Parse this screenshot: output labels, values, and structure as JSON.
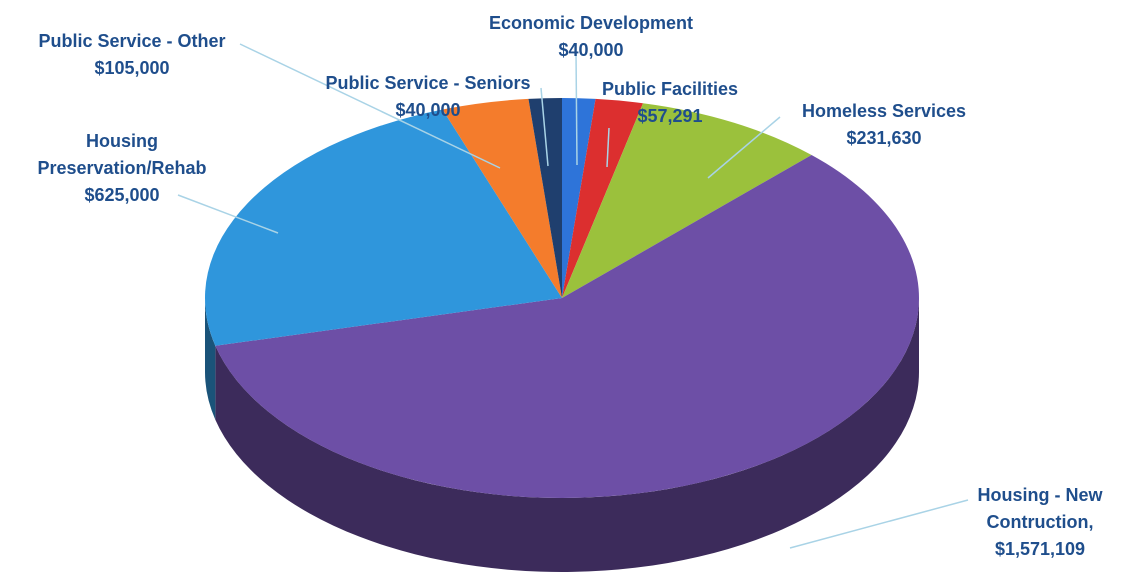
{
  "chart_data": {
    "type": "pie",
    "style": "3d",
    "label_color": "#1f4e8c",
    "leader_line_color": "#a9d3e6",
    "slices": [
      {
        "name": "Economic Development",
        "name_lines": [
          "Economic Development"
        ],
        "value": 40000,
        "value_label": "$40,000",
        "color": "#2e74d9"
      },
      {
        "name": "Public Facilities",
        "name_lines": [
          "Public Facilities"
        ],
        "value": 57291,
        "value_label": "$57,291",
        "color": "#dc2f2f"
      },
      {
        "name": "Homeless Services",
        "name_lines": [
          "Homeless Services"
        ],
        "value": 231630,
        "value_label": "$231,630",
        "color": "#9bc13c"
      },
      {
        "name": "Housing - New Contruction",
        "name_lines": [
          "Housing - New",
          "Contruction,"
        ],
        "value": 1571109,
        "value_label": "$1,571,109",
        "color": "#6d4fa6"
      },
      {
        "name": "Housing Preservation/Rehab",
        "name_lines": [
          "Housing",
          "Preservation/Rehab"
        ],
        "value": 625000,
        "value_label": "$625,000",
        "color": "#2f96dc"
      },
      {
        "name": "Public Service - Other",
        "name_lines": [
          "Public Service - Other"
        ],
        "value": 105000,
        "value_label": "$105,000",
        "color": "#f47c2c"
      },
      {
        "name": "Public Service - Seniors",
        "name_lines": [
          "Public Service - Seniors"
        ],
        "value": 40000,
        "value_label": "$40,000",
        "color": "#1f3f6e"
      }
    ]
  }
}
